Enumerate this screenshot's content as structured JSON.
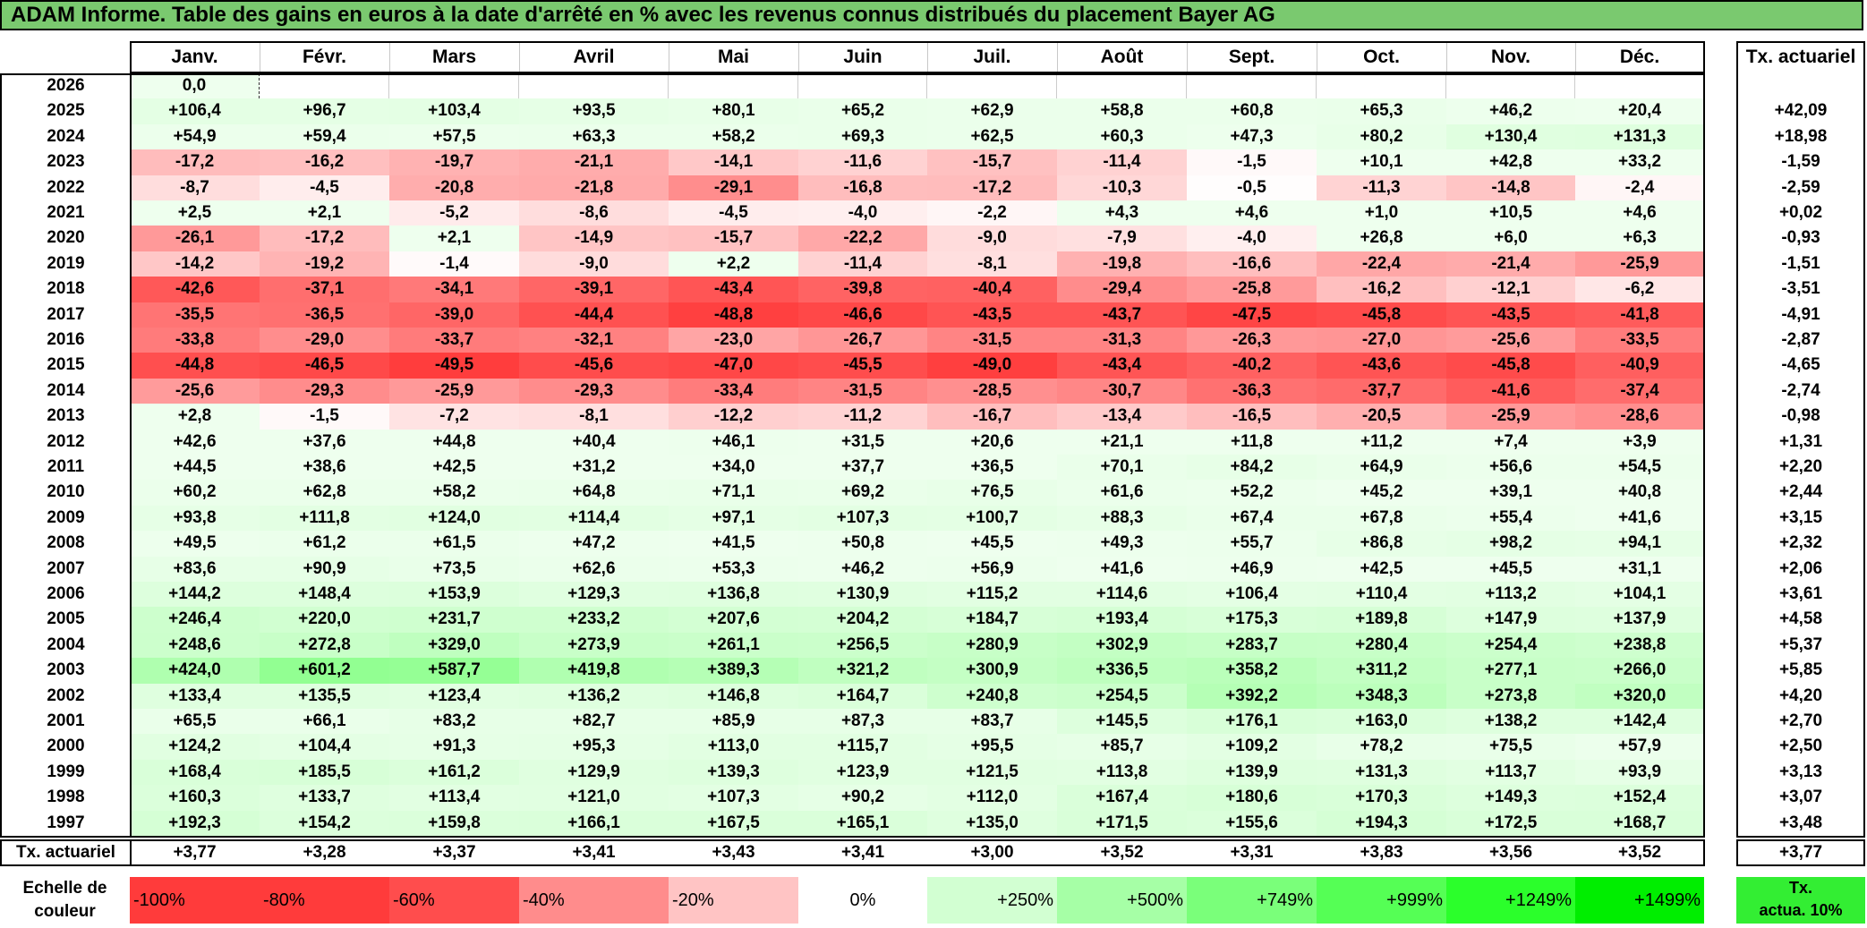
{
  "title": "ADAM Informe. Table des gains en euros à la date d'arrêté en % avec les revenus connus distribués du placement Bayer AG",
  "chart_data": {
    "type": "table",
    "months": [
      "Janv.",
      "Févr.",
      "Mars",
      "Avril",
      "Mai",
      "Juin",
      "Juil.",
      "Août",
      "Sept.",
      "Oct.",
      "Nov.",
      "Déc."
    ],
    "rate_column_header": "Tx. actuariel",
    "rows": [
      {
        "year": "2026",
        "values": [
          "0,0",
          "",
          "",
          "",
          "",
          "",
          "",
          "",
          "",
          "",
          "",
          ""
        ],
        "rate": ""
      },
      {
        "year": "2025",
        "values": [
          "+106,4",
          "+96,7",
          "+103,4",
          "+93,5",
          "+80,1",
          "+65,2",
          "+62,9",
          "+58,8",
          "+60,8",
          "+65,3",
          "+46,2",
          "+20,4"
        ],
        "rate": "+42,09"
      },
      {
        "year": "2024",
        "values": [
          "+54,9",
          "+59,4",
          "+57,5",
          "+63,3",
          "+58,2",
          "+69,3",
          "+62,5",
          "+60,3",
          "+47,3",
          "+80,2",
          "+130,4",
          "+131,3"
        ],
        "rate": "+18,98"
      },
      {
        "year": "2023",
        "values": [
          "-17,2",
          "-16,2",
          "-19,7",
          "-21,1",
          "-14,1",
          "-11,6",
          "-15,7",
          "-11,4",
          "-1,5",
          "+10,1",
          "+42,8",
          "+33,2"
        ],
        "rate": "-1,59"
      },
      {
        "year": "2022",
        "values": [
          "-8,7",
          "-4,5",
          "-20,8",
          "-21,8",
          "-29,1",
          "-16,8",
          "-17,2",
          "-10,3",
          "-0,5",
          "-11,3",
          "-14,8",
          "-2,4"
        ],
        "rate": "-2,59"
      },
      {
        "year": "2021",
        "values": [
          "+2,5",
          "+2,1",
          "-5,2",
          "-8,6",
          "-4,5",
          "-4,0",
          "-2,2",
          "+4,3",
          "+4,6",
          "+1,0",
          "+10,5",
          "+4,6"
        ],
        "rate": "+0,02"
      },
      {
        "year": "2020",
        "values": [
          "-26,1",
          "-17,2",
          "+2,1",
          "-14,9",
          "-15,7",
          "-22,2",
          "-9,0",
          "-7,9",
          "-4,0",
          "+26,8",
          "+6,0",
          "+6,3"
        ],
        "rate": "-0,93"
      },
      {
        "year": "2019",
        "values": [
          "-14,2",
          "-19,2",
          "-1,4",
          "-9,0",
          "+2,2",
          "-11,4",
          "-8,1",
          "-19,8",
          "-16,6",
          "-22,4",
          "-21,4",
          "-25,9"
        ],
        "rate": "-1,51"
      },
      {
        "year": "2018",
        "values": [
          "-42,6",
          "-37,1",
          "-34,1",
          "-39,1",
          "-43,4",
          "-39,8",
          "-40,4",
          "-29,4",
          "-25,8",
          "-16,2",
          "-12,1",
          "-6,2"
        ],
        "rate": "-3,51"
      },
      {
        "year": "2017",
        "values": [
          "-35,5",
          "-36,5",
          "-39,0",
          "-44,4",
          "-48,8",
          "-46,6",
          "-43,5",
          "-43,7",
          "-47,5",
          "-45,8",
          "-43,5",
          "-41,8"
        ],
        "rate": "-4,91"
      },
      {
        "year": "2016",
        "values": [
          "-33,8",
          "-29,0",
          "-33,7",
          "-32,1",
          "-23,0",
          "-26,7",
          "-31,5",
          "-31,3",
          "-26,3",
          "-27,0",
          "-25,6",
          "-33,5"
        ],
        "rate": "-2,87"
      },
      {
        "year": "2015",
        "values": [
          "-44,8",
          "-46,5",
          "-49,5",
          "-45,6",
          "-47,0",
          "-45,5",
          "-49,0",
          "-43,4",
          "-40,2",
          "-43,6",
          "-45,8",
          "-40,9"
        ],
        "rate": "-4,65"
      },
      {
        "year": "2014",
        "values": [
          "-25,6",
          "-29,3",
          "-25,9",
          "-29,3",
          "-33,4",
          "-31,5",
          "-28,5",
          "-30,7",
          "-36,3",
          "-37,7",
          "-41,6",
          "-37,4"
        ],
        "rate": "-2,74"
      },
      {
        "year": "2013",
        "values": [
          "+2,8",
          "-1,5",
          "-7,2",
          "-8,1",
          "-12,2",
          "-11,2",
          "-16,7",
          "-13,4",
          "-16,5",
          "-20,5",
          "-25,9",
          "-28,6"
        ],
        "rate": "-0,98"
      },
      {
        "year": "2012",
        "values": [
          "+42,6",
          "+37,6",
          "+44,8",
          "+40,4",
          "+46,1",
          "+31,5",
          "+20,6",
          "+21,1",
          "+11,8",
          "+11,2",
          "+7,4",
          "+3,9"
        ],
        "rate": "+1,31"
      },
      {
        "year": "2011",
        "values": [
          "+44,5",
          "+38,6",
          "+42,5",
          "+31,2",
          "+34,0",
          "+37,7",
          "+36,5",
          "+70,1",
          "+84,2",
          "+64,9",
          "+56,6",
          "+54,5"
        ],
        "rate": "+2,20"
      },
      {
        "year": "2010",
        "values": [
          "+60,2",
          "+62,8",
          "+58,2",
          "+64,8",
          "+71,1",
          "+69,2",
          "+76,5",
          "+61,6",
          "+52,2",
          "+45,2",
          "+39,1",
          "+40,8"
        ],
        "rate": "+2,44"
      },
      {
        "year": "2009",
        "values": [
          "+93,8",
          "+111,8",
          "+124,0",
          "+114,4",
          "+97,1",
          "+107,3",
          "+100,7",
          "+88,3",
          "+67,4",
          "+67,8",
          "+55,4",
          "+41,6"
        ],
        "rate": "+3,15"
      },
      {
        "year": "2008",
        "values": [
          "+49,5",
          "+61,2",
          "+61,5",
          "+47,2",
          "+41,5",
          "+50,8",
          "+45,5",
          "+49,3",
          "+55,7",
          "+86,8",
          "+98,2",
          "+94,1"
        ],
        "rate": "+2,32"
      },
      {
        "year": "2007",
        "values": [
          "+83,6",
          "+90,9",
          "+73,5",
          "+62,6",
          "+53,3",
          "+46,2",
          "+56,9",
          "+41,6",
          "+46,9",
          "+42,5",
          "+45,5",
          "+31,1"
        ],
        "rate": "+2,06"
      },
      {
        "year": "2006",
        "values": [
          "+144,2",
          "+148,4",
          "+153,9",
          "+129,3",
          "+136,8",
          "+130,9",
          "+115,2",
          "+114,6",
          "+106,4",
          "+110,4",
          "+113,2",
          "+104,1"
        ],
        "rate": "+3,61"
      },
      {
        "year": "2005",
        "values": [
          "+246,4",
          "+220,0",
          "+231,7",
          "+233,2",
          "+207,6",
          "+204,2",
          "+184,7",
          "+193,4",
          "+175,3",
          "+189,8",
          "+147,9",
          "+137,9"
        ],
        "rate": "+4,58"
      },
      {
        "year": "2004",
        "values": [
          "+248,6",
          "+272,8",
          "+329,0",
          "+273,9",
          "+261,1",
          "+256,5",
          "+280,9",
          "+302,9",
          "+283,7",
          "+280,4",
          "+254,4",
          "+238,8"
        ],
        "rate": "+5,37"
      },
      {
        "year": "2003",
        "values": [
          "+424,0",
          "+601,2",
          "+587,7",
          "+419,8",
          "+389,3",
          "+321,2",
          "+300,9",
          "+336,5",
          "+358,2",
          "+311,2",
          "+277,1",
          "+266,0"
        ],
        "rate": "+5,85"
      },
      {
        "year": "2002",
        "values": [
          "+133,4",
          "+135,5",
          "+123,4",
          "+136,2",
          "+146,8",
          "+164,7",
          "+240,8",
          "+254,5",
          "+392,2",
          "+348,3",
          "+273,8",
          "+320,0"
        ],
        "rate": "+4,20"
      },
      {
        "year": "2001",
        "values": [
          "+65,5",
          "+66,1",
          "+83,2",
          "+82,7",
          "+85,9",
          "+87,3",
          "+83,7",
          "+145,5",
          "+176,1",
          "+163,0",
          "+138,2",
          "+142,4"
        ],
        "rate": "+2,70"
      },
      {
        "year": "2000",
        "values": [
          "+124,2",
          "+104,4",
          "+91,3",
          "+95,3",
          "+113,0",
          "+115,7",
          "+95,5",
          "+85,7",
          "+109,2",
          "+78,2",
          "+75,5",
          "+57,9"
        ],
        "rate": "+2,50"
      },
      {
        "year": "1999",
        "values": [
          "+168,4",
          "+185,5",
          "+161,2",
          "+129,9",
          "+139,3",
          "+123,9",
          "+121,5",
          "+113,8",
          "+139,9",
          "+131,3",
          "+113,7",
          "+93,9"
        ],
        "rate": "+3,13"
      },
      {
        "year": "1998",
        "values": [
          "+160,3",
          "+133,7",
          "+113,4",
          "+121,0",
          "+107,3",
          "+90,2",
          "+112,0",
          "+167,4",
          "+180,6",
          "+170,3",
          "+149,3",
          "+152,4"
        ],
        "rate": "+3,07"
      },
      {
        "year": "1997",
        "values": [
          "+192,3",
          "+154,2",
          "+159,8",
          "+166,1",
          "+167,5",
          "+165,1",
          "+135,0",
          "+171,5",
          "+155,6",
          "+194,3",
          "+172,5",
          "+168,7"
        ],
        "rate": "+3,48"
      }
    ],
    "summary_row": {
      "label": "Tx. actuariel",
      "values": [
        "+3,77",
        "+3,28",
        "+3,37",
        "+3,41",
        "+3,43",
        "+3,41",
        "+3,00",
        "+3,52",
        "+3,31",
        "+3,83",
        "+3,56",
        "+3,52"
      ],
      "rate": "+3,77"
    },
    "color_scale": {
      "label_line1": "Echelle de",
      "label_line2": "couleur",
      "steps": [
        {
          "label": "-100%",
          "color": "#ff3b3b"
        },
        {
          "label": "-80%",
          "color": "#ff3b3b"
        },
        {
          "label": "-60%",
          "color": "#ff4d4d"
        },
        {
          "label": "-40%",
          "color": "#ff8c8c"
        },
        {
          "label": "-20%",
          "color": "#ffc4c4"
        },
        {
          "label": "0%",
          "color": "#ffffff"
        },
        {
          "label": "+250%",
          "color": "#d2ffd2"
        },
        {
          "label": "+500%",
          "color": "#a6ffa6"
        },
        {
          "label": "+749%",
          "color": "#7aff7a"
        },
        {
          "label": "+999%",
          "color": "#55ff55"
        },
        {
          "label": "+1249%",
          "color": "#2bff2b"
        },
        {
          "label": "+1499%",
          "color": "#00ee00"
        }
      ],
      "rate_box_line1": "Tx.",
      "rate_box_line2": "actua. 10%",
      "rate_box_color": "#33ee33"
    }
  }
}
